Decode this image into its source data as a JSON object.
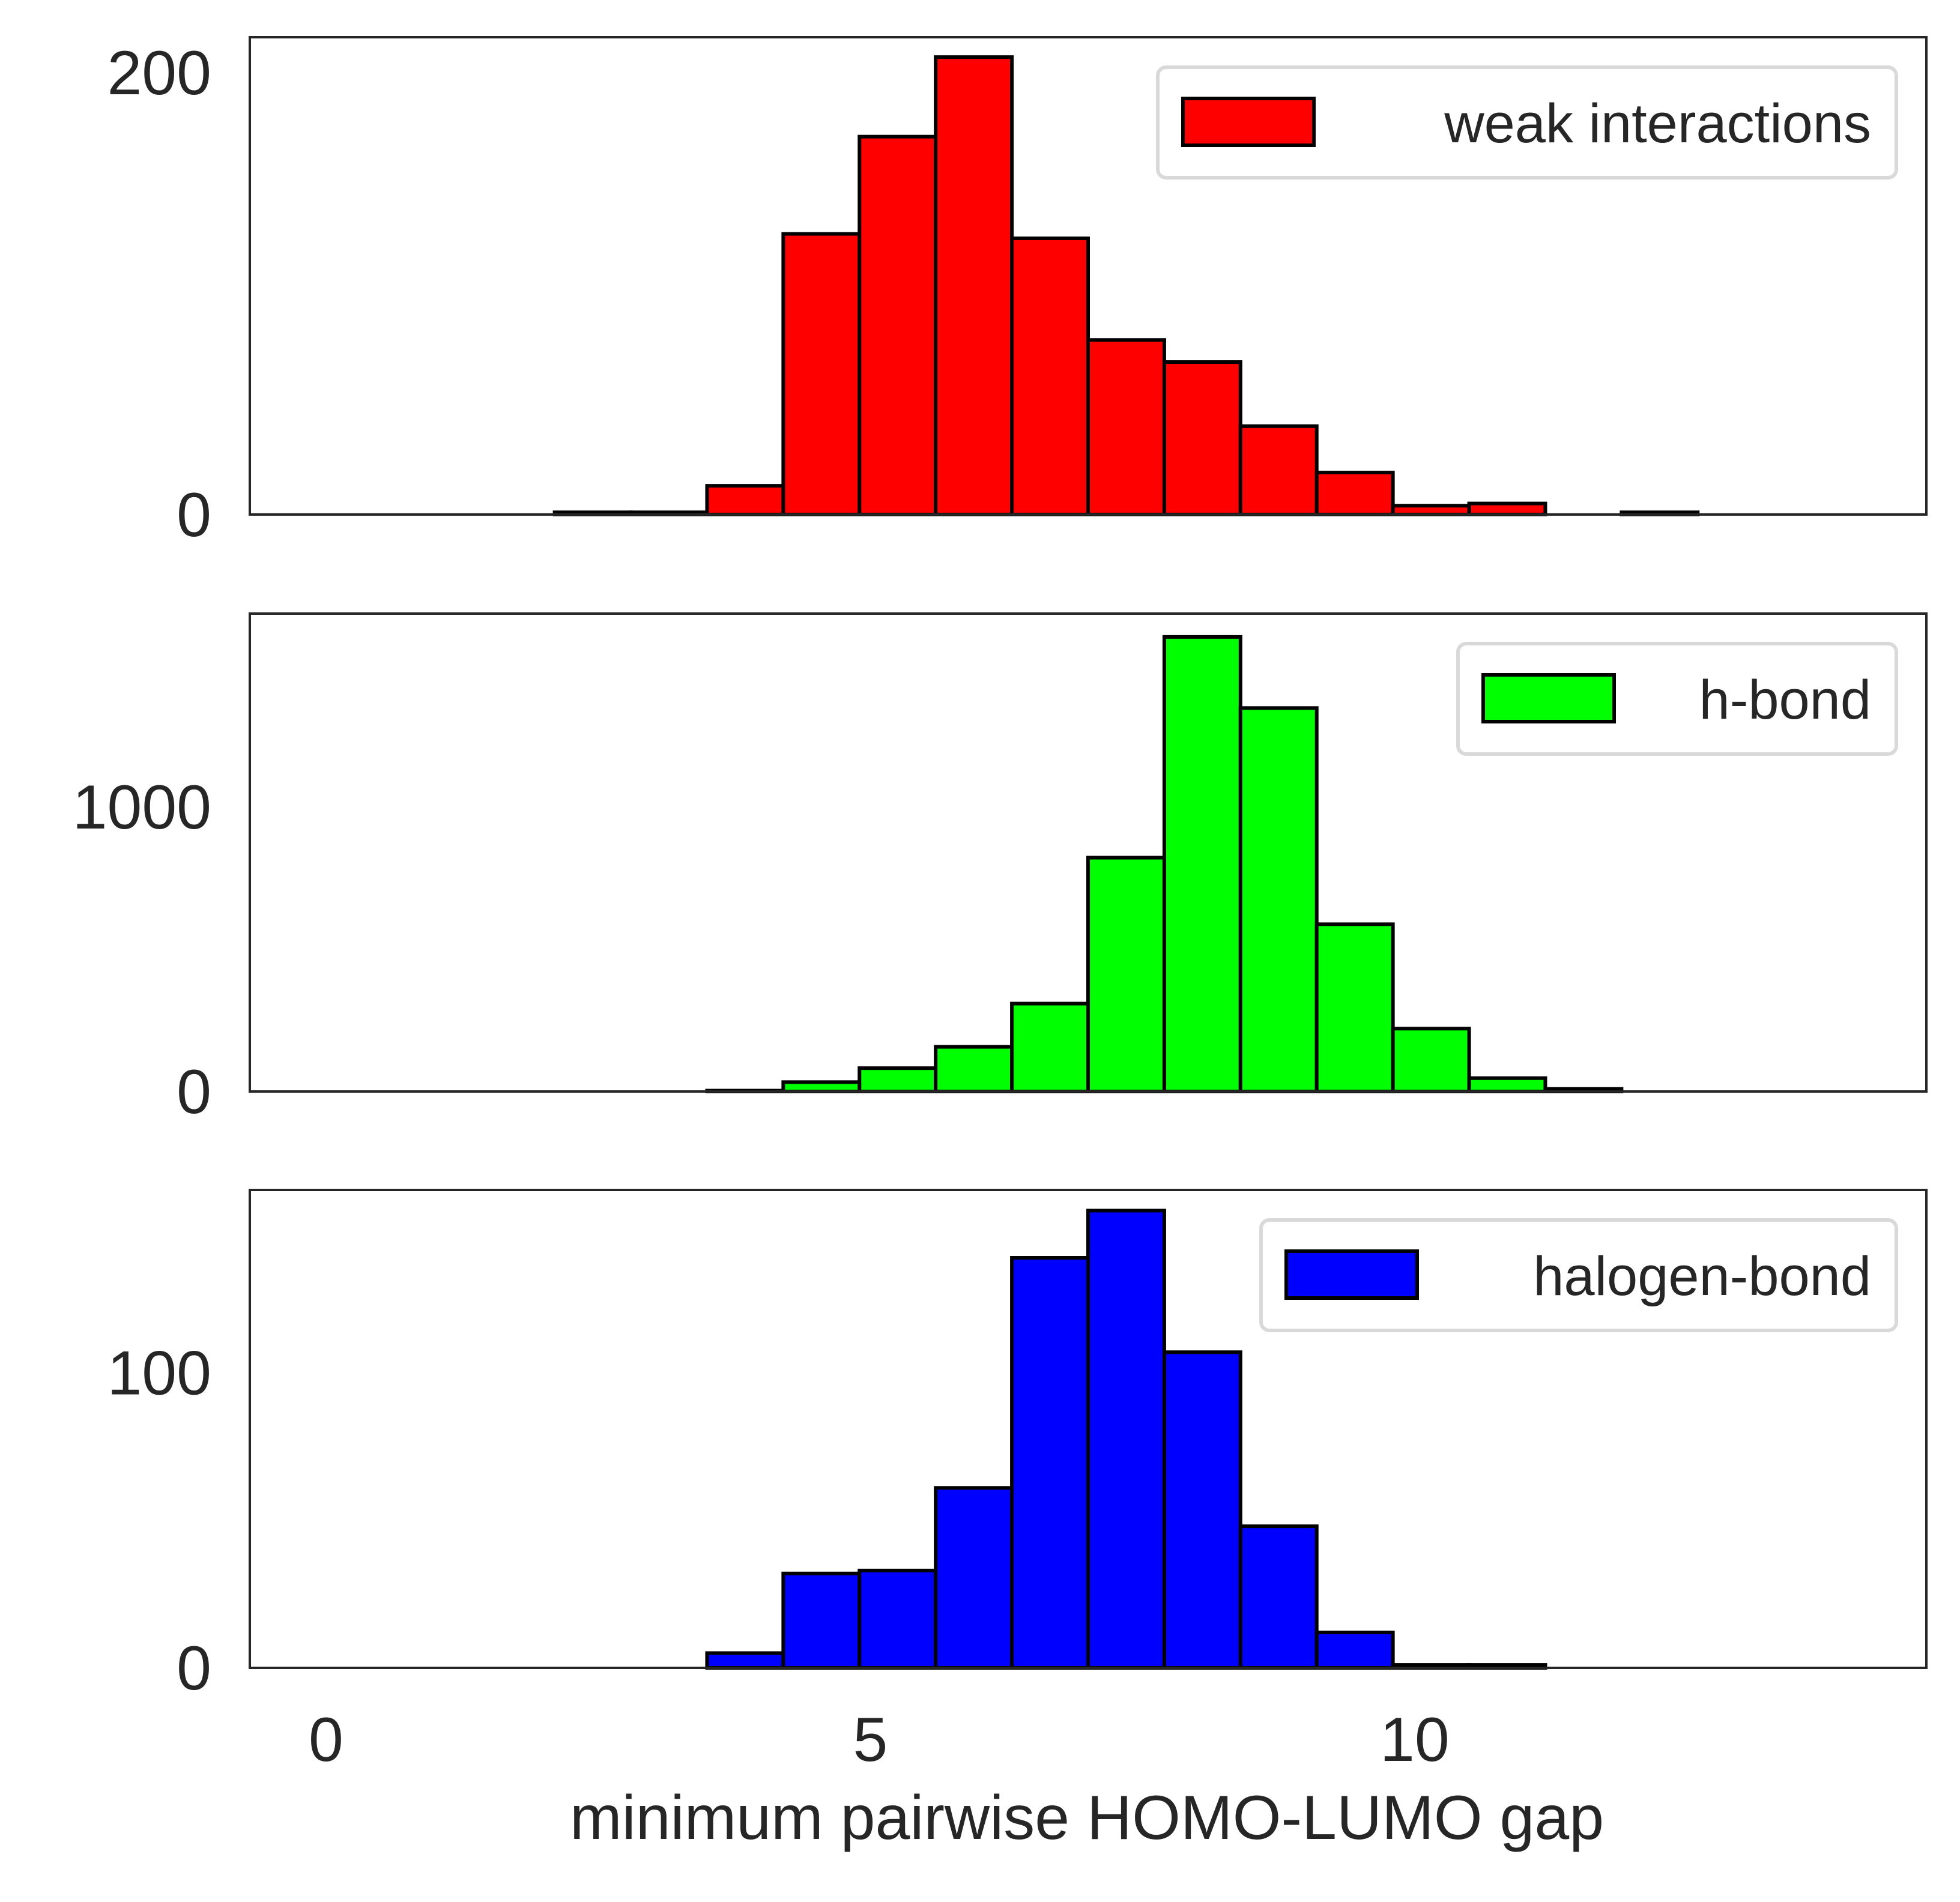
{
  "chart_data": {
    "type": "bar",
    "subtype": "histogram",
    "layout": "three stacked panels sharing x axis",
    "xlabel": "minimum pairwise HOMO-LUMO gap",
    "xlim": [
      -0.7,
      14.7
    ],
    "x_ticks": [
      {
        "value": 0,
        "label": "0"
      },
      {
        "value": 5,
        "label": "5"
      },
      {
        "value": 10,
        "label": "10"
      }
    ],
    "bin_edges": [
      0.0,
      0.7,
      1.4,
      2.1,
      2.8,
      3.5,
      4.2,
      4.9,
      5.6,
      6.3,
      7.0,
      7.7,
      8.4,
      9.1,
      9.8,
      10.5,
      11.2,
      11.9,
      12.6,
      13.3,
      14.0
    ],
    "bar_edge_color": "#000000",
    "grid": false,
    "panels": [
      {
        "series_name": "weak interactions",
        "color": "#ff0000",
        "ylim": [
          0,
          216
        ],
        "y_ticks": [
          {
            "value": 0,
            "label": "0"
          },
          {
            "value": 200,
            "label": "200"
          }
        ],
        "counts": [
          0,
          0,
          0,
          1,
          1,
          13,
          127,
          171,
          207,
          125,
          79,
          69,
          40,
          19,
          4,
          5,
          0,
          1,
          0,
          0
        ],
        "legend_position": "upper right"
      },
      {
        "series_name": "h-bond",
        "color": "#00ff00",
        "ylim": [
          0,
          1680
        ],
        "y_ticks": [
          {
            "value": 0,
            "label": "0"
          },
          {
            "value": 1000,
            "label": "1000"
          }
        ],
        "counts": [
          0,
          0,
          0,
          0,
          0,
          3,
          33,
          82,
          157,
          309,
          822,
          1598,
          1348,
          588,
          221,
          47,
          9,
          0,
          0,
          0
        ],
        "legend_position": "upper right"
      },
      {
        "series_name": "halogen-bond",
        "color": "#0000ff",
        "ylim": [
          0,
          162
        ],
        "y_ticks": [
          {
            "value": 0,
            "label": "0"
          },
          {
            "value": 100,
            "label": "100"
          }
        ],
        "counts": [
          0,
          0,
          0,
          0,
          0,
          5,
          32,
          33,
          61,
          139,
          155,
          107,
          48,
          12,
          1,
          1,
          0,
          0,
          0,
          0
        ],
        "legend_position": "upper right"
      }
    ]
  }
}
